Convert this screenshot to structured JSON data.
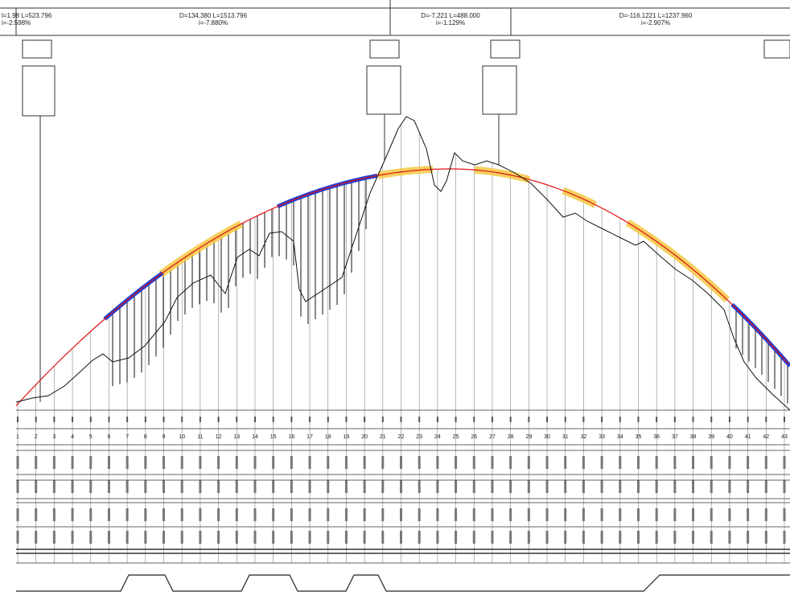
{
  "segments": [
    {
      "line1": "l=1.98 L=523.796",
      "line2": "i=-2.598%"
    },
    {
      "line1": "D=134,380 L=1513.796",
      "line2": "i=-7.880%"
    },
    {
      "line1": "D=-7,221 L=488.000",
      "line2": "i=-1.129%"
    },
    {
      "line1": "D=-116.1221 L=1237.960",
      "line2": "i=-2.907%"
    }
  ],
  "stations": [
    "1",
    "2",
    "3",
    "4",
    "5",
    "6",
    "7",
    "8",
    "9",
    "10",
    "11",
    "12",
    "13",
    "14",
    "15",
    "16",
    "17",
    "18",
    "19",
    "20",
    "21",
    "22",
    "23",
    "24",
    "25",
    "26",
    "27",
    "28",
    "29",
    "30",
    "31",
    "32",
    "33",
    "34",
    "35",
    "36",
    "37",
    "38",
    "39",
    "40",
    "41",
    "42",
    "43"
  ]
}
